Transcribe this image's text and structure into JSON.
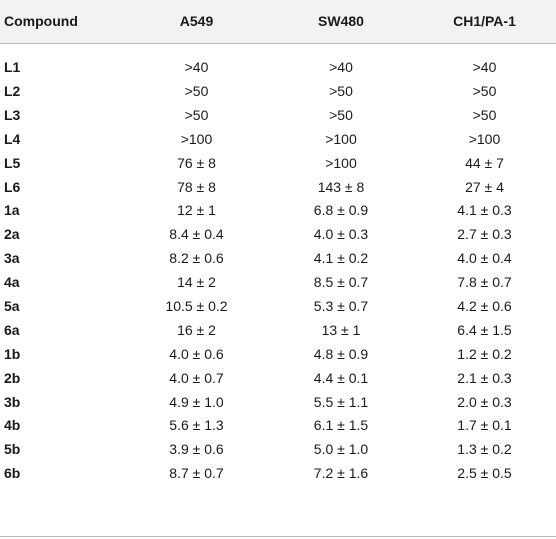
{
  "table": {
    "headers": [
      "Compound",
      "A549",
      "SW480",
      "CH1/PA-1"
    ],
    "rows": [
      [
        "L1",
        ">40",
        ">40",
        ">40"
      ],
      [
        "L2",
        ">50",
        ">50",
        ">50"
      ],
      [
        "L3",
        ">50",
        ">50",
        ">50"
      ],
      [
        "L4",
        ">100",
        ">100",
        ">100"
      ],
      [
        "L5",
        "76 ± 8",
        ">100",
        "44 ± 7"
      ],
      [
        "L6",
        "78 ± 8",
        "143 ± 8",
        "27 ± 4"
      ],
      [
        "1a",
        "12 ± 1",
        "6.8 ± 0.9",
        "4.1 ± 0.3"
      ],
      [
        "2a",
        "8.4 ± 0.4",
        "4.0 ± 0.3",
        "2.7 ± 0.3"
      ],
      [
        "3a",
        "8.2 ± 0.6",
        "4.1 ± 0.2",
        "4.0 ± 0.4"
      ],
      [
        "4a",
        "14 ± 2",
        "8.5 ± 0.7",
        "7.8 ± 0.7"
      ],
      [
        "5a",
        "10.5 ± 0.2",
        "5.3 ± 0.7",
        "4.2 ± 0.6"
      ],
      [
        "6a",
        "16 ± 2",
        "13 ± 1",
        "6.4 ± 1.5"
      ],
      [
        "1b",
        "4.0 ± 0.6",
        "4.8 ± 0.9",
        "1.2 ± 0.2"
      ],
      [
        "2b",
        "4.0 ± 0.7",
        "4.4 ± 0.1",
        "2.1 ± 0.3"
      ],
      [
        "3b",
        "4.9 ± 1.0",
        "5.5 ± 1.1",
        "2.0 ± 0.3"
      ],
      [
        "4b",
        "5.6 ± 1.3",
        "6.1 ± 1.5",
        "1.7 ± 0.1"
      ],
      [
        "5b",
        "3.9 ± 0.6",
        "5.0 ± 1.0",
        "1.3 ± 0.2"
      ],
      [
        "6b",
        "8.7 ± 0.7",
        "7.2 ± 1.6",
        "2.5 ± 0.5"
      ]
    ]
  }
}
